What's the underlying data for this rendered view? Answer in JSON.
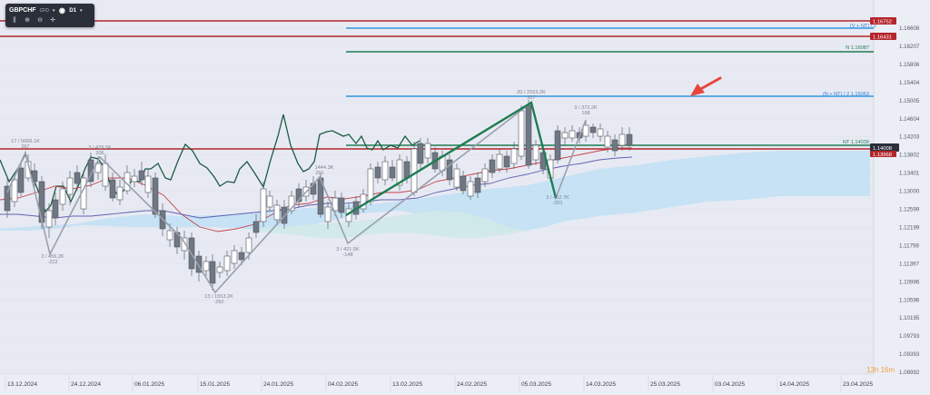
{
  "toolbar": {
    "symbol": "GBPCHF",
    "instrument_type": "CFD",
    "timeframe": "D1",
    "icons": [
      "bar-chart-icon",
      "zoom-in-icon",
      "zoom-out-icon",
      "crosshair-move-icon"
    ]
  },
  "price_scale": [
    "1.16608",
    "1.16207",
    "1.15806",
    "1.15404",
    "1.15005",
    "1.14604",
    "1.14203",
    "1.13802",
    "1.13401",
    "1.13000",
    "1.12599",
    "1.12199",
    "1.11798",
    "1.11397",
    "1.10996",
    "1.10596",
    "1.10195",
    "1.09793",
    "1.09393",
    "1.08992"
  ],
  "price_tags": [
    {
      "text": "1.16752",
      "color": "#b3262b"
    },
    {
      "text": "1.16431",
      "color": "#b3262b"
    },
    {
      "text": "1.14008",
      "color": "#2b2f3a"
    },
    {
      "text": "1.13968",
      "color": "#b3262b"
    }
  ],
  "level_labels": [
    {
      "text": "(V + NT) / 2",
      "color": "#2f7fd8"
    },
    {
      "text": "N 1.16087",
      "color": "#1e7d52"
    },
    {
      "text": "(N + NT) / 2 1.15063",
      "color": "#2f7fd8"
    },
    {
      "text": "NT 1.14039",
      "color": "#1e7d52"
    }
  ],
  "wave_labels": [
    {
      "top": "17 / 5066.1K",
      "bottom": "267"
    },
    {
      "top": "3 / 429.5K",
      "bottom": "206"
    },
    {
      "top": "3 / 456.2K",
      "bottom": "-222"
    },
    {
      "top": "13 / 1553.2K",
      "bottom": "-282"
    },
    {
      "top": "1444.3K",
      "bottom": "201"
    },
    {
      "top": "3 / 421.5K",
      "bottom": "-148"
    },
    {
      "top": "20 / 2553.2K",
      "bottom": "327"
    },
    {
      "top": "3 / 372.2K",
      "bottom": "168"
    },
    {
      "top": "3 / 462.7K",
      "bottom": "-201"
    }
  ],
  "dates": [
    "13.12.2024",
    "24.12.2024",
    "06.01.2025",
    "15.01.2025",
    "24.01.2025",
    "04.02.2025",
    "13.02.2025",
    "24.02.2025",
    "05.03.2025",
    "14.03.2025",
    "25.03.2025",
    "03.04.2025",
    "14.04.2025",
    "23.04.2025"
  ],
  "countdown": "13h 16m",
  "colors": {
    "background": "#e9ebf3",
    "red_level": "#b3262b",
    "blue_level": "#2f95e0",
    "green_level": "#1e7d52",
    "arrow": "#e8463d",
    "cloud": "#bfdef2",
    "candle_bear": "#6f7783",
    "candle_bull": "#ffffff"
  }
}
